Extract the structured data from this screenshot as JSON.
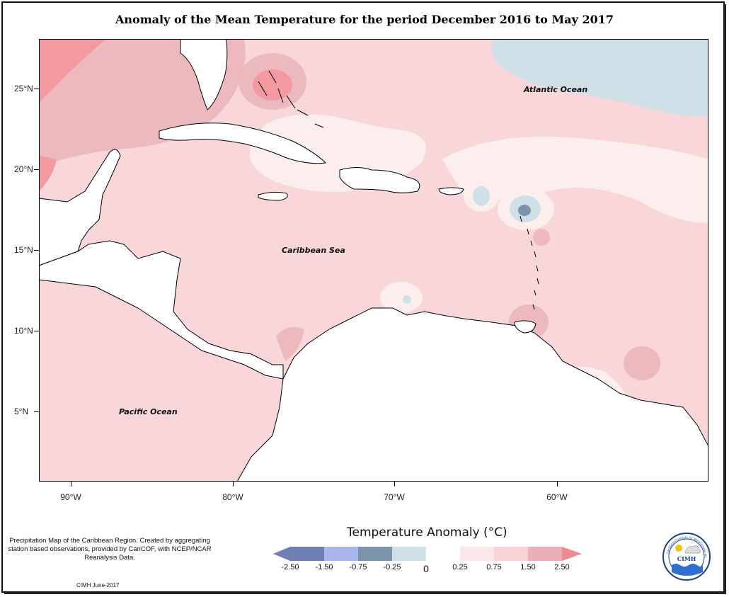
{
  "title": "Anomaly of the Mean Temperature for the period December 2016 to May 2017",
  "map": {
    "lat_labels": [
      "25°N",
      "20°N",
      "15°N",
      "10°N",
      "5°N"
    ],
    "lon_labels": [
      "90°W",
      "80°W",
      "70°W",
      "60°W"
    ],
    "oceans": {
      "atlantic": "Atlantic Ocean",
      "caribbean": "Caribbean Sea",
      "pacific": "Pacific Ocean"
    }
  },
  "legend": {
    "title": "Temperature Anomaly (°C)",
    "tick_labels": [
      "-2.50",
      "-1.50",
      "-0.75",
      "-0.25",
      "0",
      "0.25",
      "0.75",
      "1.50",
      "2.50"
    ],
    "colors": [
      "#6e7fb5",
      "#a9b7ee",
      "#7b93ab",
      "#cfe0e6",
      "#ffffff",
      "#fbe7e9",
      "#f7d2d6",
      "#ebb0b5",
      "#f08a8f"
    ]
  },
  "note": "Precipitation Map of the Caribbean Region. Created by aggregating station based observations, provided by CariCOF, with NCEP/NCAR Reanalysis Data.",
  "credit": "CIMH June-2017",
  "logo": {
    "text": "CIMH",
    "ring_text": "Caribbean Institute for Meteorology and Hydrology"
  }
}
